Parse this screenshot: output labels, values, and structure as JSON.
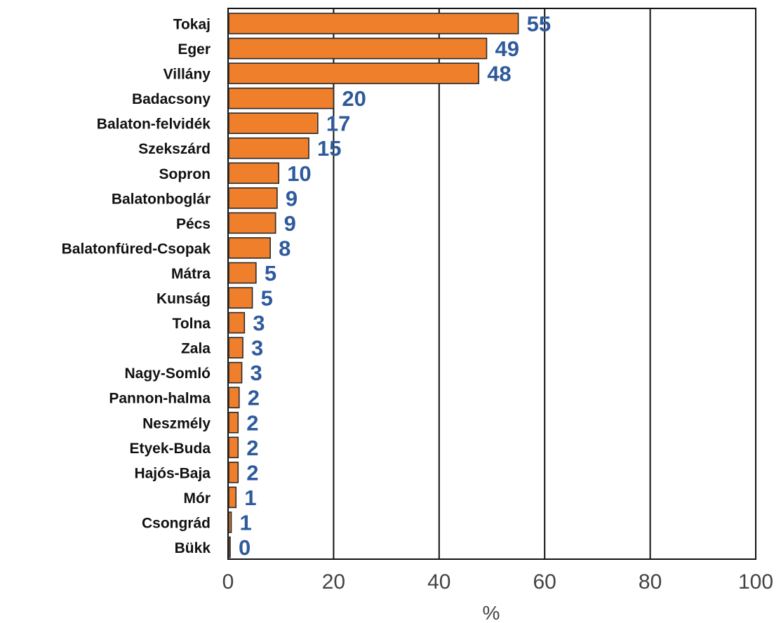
{
  "chart_data": {
    "type": "bar",
    "orientation": "horizontal",
    "categories": [
      "Tokaj",
      "Eger",
      "Villány",
      "Badacsony",
      "Balaton-felvidék",
      "Szekszárd",
      "Sopron",
      "Balatonboglár",
      "Pécs",
      "Balatonfüred-Csopak",
      "Mátra",
      "Kunság",
      "Tolna",
      "Zala",
      "Nagy-Somló",
      "Pannon-halma",
      "Neszmély",
      "Etyek-Buda",
      "Hajós-Baja",
      "Mór",
      "Csongrád",
      "Bükk"
    ],
    "values": [
      55,
      49,
      48,
      20,
      17,
      15,
      10,
      9,
      9,
      8,
      5,
      5,
      3,
      3,
      3,
      2,
      2,
      2,
      2,
      1,
      1,
      0
    ],
    "bar_lengths": [
      55,
      49,
      47.5,
      20,
      17,
      15.3,
      9.6,
      9.3,
      9,
      8,
      5.3,
      4.6,
      3.1,
      2.8,
      2.6,
      2.1,
      1.9,
      1.9,
      1.9,
      1.5,
      0.6,
      0.2
    ],
    "value_labels": [
      "55",
      "49",
      "48",
      "20",
      "17",
      "15",
      "10",
      "9",
      "9",
      "8",
      "5",
      "5",
      "3",
      "3",
      "3",
      "2",
      "2",
      "2",
      "2",
      "1",
      "1",
      "0"
    ],
    "xlim": [
      0,
      100
    ],
    "x_ticks": [
      0,
      20,
      40,
      60,
      80,
      100
    ],
    "x_tick_labels": [
      "0",
      "20",
      "40",
      "60",
      "80",
      "100"
    ],
    "xlabel": "%",
    "ylabel": "",
    "title": "",
    "grid": "vertical lines at x ticks",
    "legend": "none",
    "colors": {
      "bar_fill": "#f07f2c",
      "bar_stroke": "#2a2a2a",
      "value_label": "#2e5a9c",
      "category_label": "#111111",
      "tick_label": "#444444",
      "grid": "#111111"
    }
  }
}
